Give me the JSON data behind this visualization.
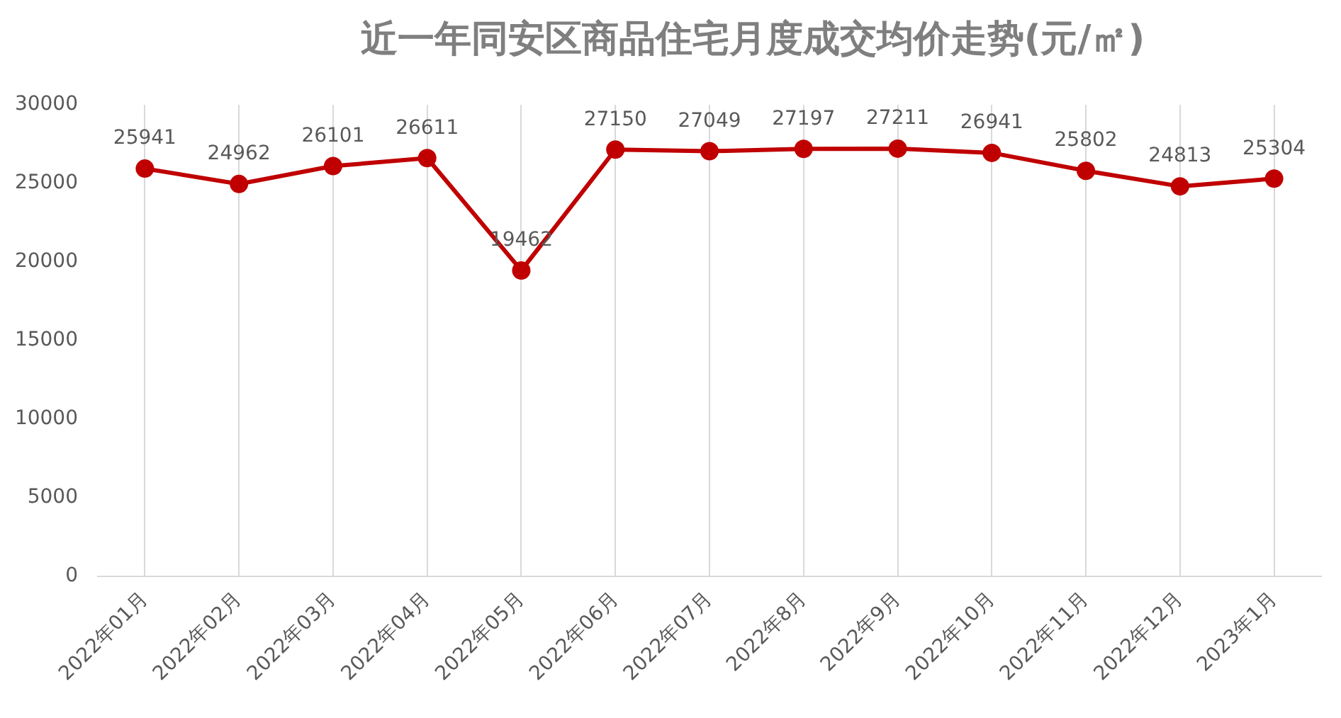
{
  "chart_data": {
    "type": "line",
    "title": "近一年同安区商品住宅月度成交均价走势(元/㎡)",
    "categories": [
      "2022年01月",
      "2022年02月",
      "2022年03月",
      "2022年04月",
      "2022年05月",
      "2022年06月",
      "2022年07月",
      "2022年8月",
      "2022年9月",
      "2022年10月",
      "2022年11月",
      "2022年12月",
      "2023年1月"
    ],
    "series": [
      {
        "color": "#c00000",
        "values": [
          25941,
          24962,
          26101,
          26611,
          19462,
          27150,
          27049,
          27197,
          27211,
          26941,
          25802,
          24813,
          25304
        ]
      }
    ],
    "ylim": [
      0,
      30000
    ],
    "yticks": [
      0,
      5000,
      10000,
      15000,
      20000,
      25000,
      30000
    ],
    "grid": "x",
    "marker": "circle",
    "line_style": "solid",
    "data_labels": true
  }
}
